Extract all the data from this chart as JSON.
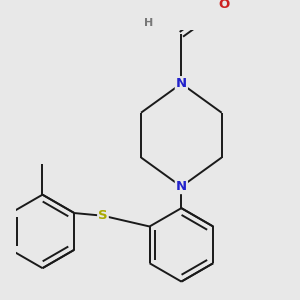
{
  "bg_color": "#e8e8e8",
  "bond_color": "#1a1a1a",
  "N_color": "#2222cc",
  "O_color": "#cc2222",
  "S_color": "#aaaa00",
  "H_color": "#777777",
  "bond_width": 1.4,
  "font_size_atom": 9.5,
  "font_size_H": 8.0,
  "xlim": [
    -2.5,
    3.5
  ],
  "ylim": [
    -3.2,
    2.8
  ]
}
